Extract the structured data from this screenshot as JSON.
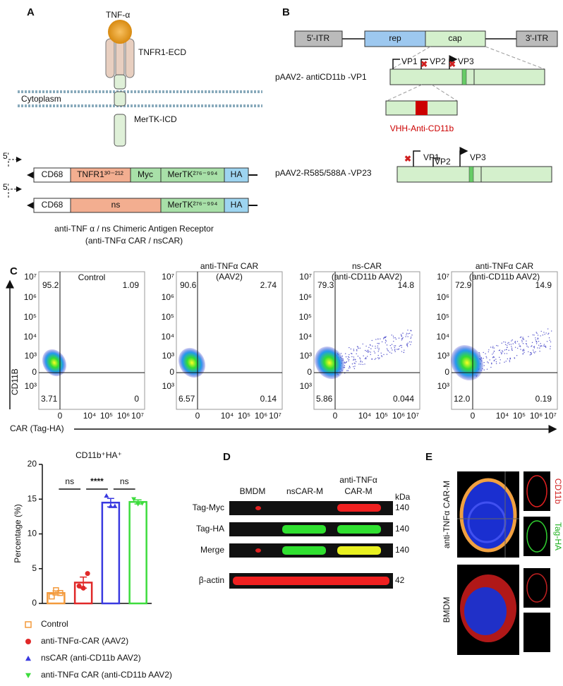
{
  "panels": {
    "A": {
      "letter": "A",
      "ligand": "TNF-α",
      "ecd": "TNFR1-ECD",
      "cytoplasm": "Cytoplasm",
      "icd": "MerTK-ICD",
      "construct1": {
        "promoter": "5'",
        "parts": [
          "CD68",
          "TNFR1³⁰⁻²¹²",
          "Myc",
          "MerTK²⁷⁶⁻⁹⁹⁴",
          "HA"
        ]
      },
      "construct2": {
        "promoter": "5'",
        "parts": [
          "CD68",
          "ns",
          "MerTK²⁷⁶⁻⁹⁹⁴",
          "HA"
        ]
      },
      "caption": [
        "anti-TNF α / ns Chimeric Antigen Receptor",
        "(anti-TNFα CAR / nsCAR)"
      ]
    },
    "B": {
      "letter": "B",
      "genome": [
        "5'-ITR",
        "rep",
        "cap",
        "3'-ITR"
      ],
      "construct1": {
        "name": "pAAV2- antiCD11b -VP1",
        "vps": [
          "VP1",
          "VP2",
          "VP3"
        ]
      },
      "insert": "VHH-Anti-CD11b",
      "construct2": {
        "name": "pAAV2-R585/588A -VP23",
        "vps": [
          "VP1",
          "VP2",
          "VP3"
        ]
      }
    },
    "C": {
      "letter": "C",
      "y_label": "CD11B",
      "x_label": "CAR (Tag-HA)",
      "yticks": [
        "10⁷",
        "10⁶",
        "10⁵",
        "10⁴",
        "10³",
        "0",
        "10³"
      ],
      "xticks": [
        "0",
        "10⁴",
        "10⁵",
        "10⁶",
        "10⁷"
      ],
      "plots": [
        {
          "title": [
            "Control"
          ],
          "quadrants": [
            "95.2",
            "1.09",
            "3.71",
            "0"
          ]
        },
        {
          "title": [
            "anti-TNFα CAR",
            "(AAV2)"
          ],
          "quadrants": [
            "90.6",
            "2.74",
            "6.57",
            "0.14"
          ]
        },
        {
          "title": [
            "ns-CAR",
            "(anti-CD11b AAV2)"
          ],
          "quadrants": [
            "79.3",
            "14.8",
            "5.86",
            "0.044"
          ]
        },
        {
          "title": [
            "anti-TNFα CAR",
            "(anti-CD11b AAV2)"
          ],
          "quadrants": [
            "72.9",
            "14.9",
            "12.0",
            "0.19"
          ]
        }
      ]
    },
    "D": {
      "letter": "D",
      "lanes": [
        "BMDM",
        "nsCAR-M",
        "anti-TNFα",
        "CAR-M"
      ],
      "unit": "kDa",
      "rows": [
        {
          "name": "Tag-Myc",
          "kda": "140"
        },
        {
          "name": "Tag-HA",
          "kda": "140"
        },
        {
          "name": "Merge",
          "kda": "140"
        },
        {
          "name": "β-actin",
          "kda": "42"
        }
      ]
    },
    "E": {
      "letter": "E",
      "groups": [
        "anti-TNFα CAR-M",
        "BMDM"
      ],
      "channels": [
        "CD11b",
        "Tag-HA"
      ]
    }
  },
  "chart_data": {
    "type": "bar",
    "title": "CD11b⁺HA⁺",
    "y_label": "Percentage (%)",
    "categories": [
      "Control",
      "anti-TNFα-CAR (AAV2)",
      "nsCAR (anti-CD11b AAV2)",
      "anti-TNFα CAR (anti-CD11b AAV2)"
    ],
    "values": [
      1.5,
      3.0,
      14.5,
      14.6
    ],
    "errors": [
      0.3,
      0.8,
      0.6,
      0.3
    ],
    "points": [
      [
        1.0,
        1.9,
        1.5
      ],
      [
        2.5,
        2.2,
        4.3
      ],
      [
        15.5,
        14.0,
        14.0
      ],
      [
        15.0,
        14.3,
        14.4
      ]
    ],
    "colors": [
      "#f39a3c",
      "#e02828",
      "#3a3ae0",
      "#3ddc3d"
    ],
    "markers": [
      "square",
      "circle",
      "triangle-up",
      "triangle-down"
    ],
    "significance": [
      "ns",
      "****",
      "ns"
    ],
    "ylim": [
      0,
      20
    ],
    "yticks": [
      0,
      5,
      10,
      15,
      20
    ]
  }
}
